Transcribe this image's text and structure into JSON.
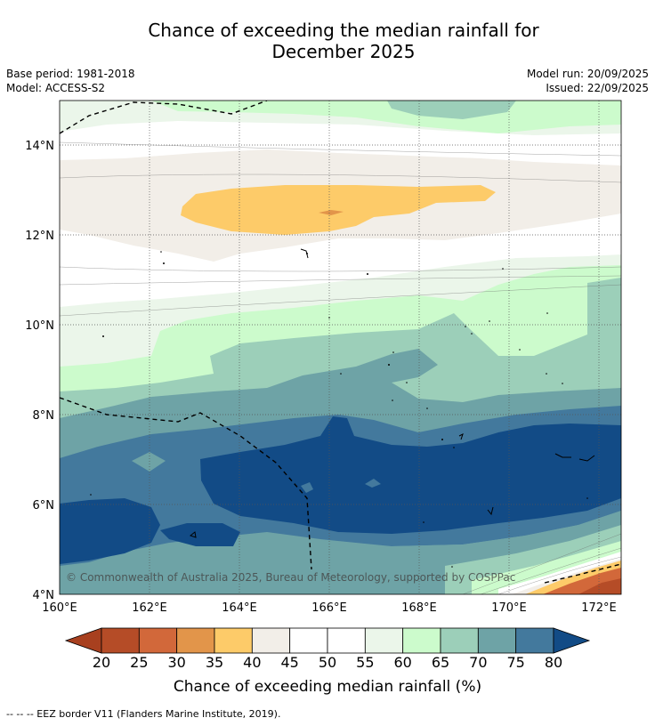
{
  "title_line1": "Chance of exceeding the median rainfall for",
  "title_line2": "December 2025",
  "base_period": "Base period: 1981-2018",
  "model": "Model: ACCESS-S2",
  "model_run": "Model run: 20/09/2025",
  "issued": "Issued: 22/09/2025",
  "map": {
    "lat_labels": [
      "14°N",
      "12°N",
      "10°N",
      "8°N",
      "6°N",
      "4°N"
    ],
    "lon_labels": [
      "160°E",
      "162°E",
      "164°E",
      "166°E",
      "168°E",
      "170°E",
      "172°E"
    ],
    "copyright": "© Commonwealth of Australia 2025, Bureau of Meteorology, supported by COSPPac"
  },
  "colorbar": {
    "ticks": [
      "20",
      "25",
      "30",
      "35",
      "40",
      "45",
      "50",
      "55",
      "60",
      "65",
      "70",
      "75",
      "80"
    ],
    "colors": [
      "#a8401f",
      "#b54c27",
      "#d2683a",
      "#e2954a",
      "#fdcb69",
      "#f2eee8",
      "#ffffff",
      "#ffffff",
      "#ebf6ea",
      "#ccfbcc",
      "#9ccfb9",
      "#6ea3a6",
      "#43799d",
      "#124b86"
    ],
    "label": "Chance of exceeding median rainfall (%)"
  },
  "footnote": "--  --  -- EEZ border V11 (Flanders Marine Institute, 2019)."
}
